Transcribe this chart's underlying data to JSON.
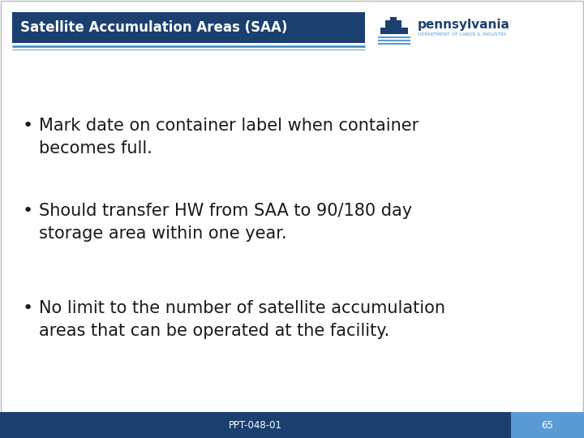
{
  "title": "Satellite Accumulation Areas (SAA)",
  "title_bg_color": "#1b4070",
  "title_text_color": "#ffffff",
  "slide_bg_color": "#ffffff",
  "accent_line_color1": "#4a90c4",
  "accent_line_color2": "#7ab8d8",
  "bullet_points": [
    "Mark date on container label when container\nbecomes full.",
    "Should transfer HW from SAA to 90/180 day\nstorage area within one year.",
    "No limit to the number of satellite accumulation\nareas that can be operated at the facility."
  ],
  "bullet_color": "#1a1a1a",
  "bullet_fontsize": 15,
  "footer_text": "PPT-048-01",
  "footer_page": "65",
  "footer_bg_color": "#1b4070",
  "footer_text_color": "#ffffff",
  "footer_page_bg_color": "#5b9bd5",
  "border_color": "#bbbbbb",
  "pa_text": "pennsylvania",
  "pa_sub_text": "DEPARTMENT OF LABOR & INDUSTRY",
  "pa_text_color": "#1b4070",
  "pa_sub_color": "#5b9bd5",
  "ship_body_color": "#1b4070",
  "ship_wave_color": "#5b9bd5"
}
